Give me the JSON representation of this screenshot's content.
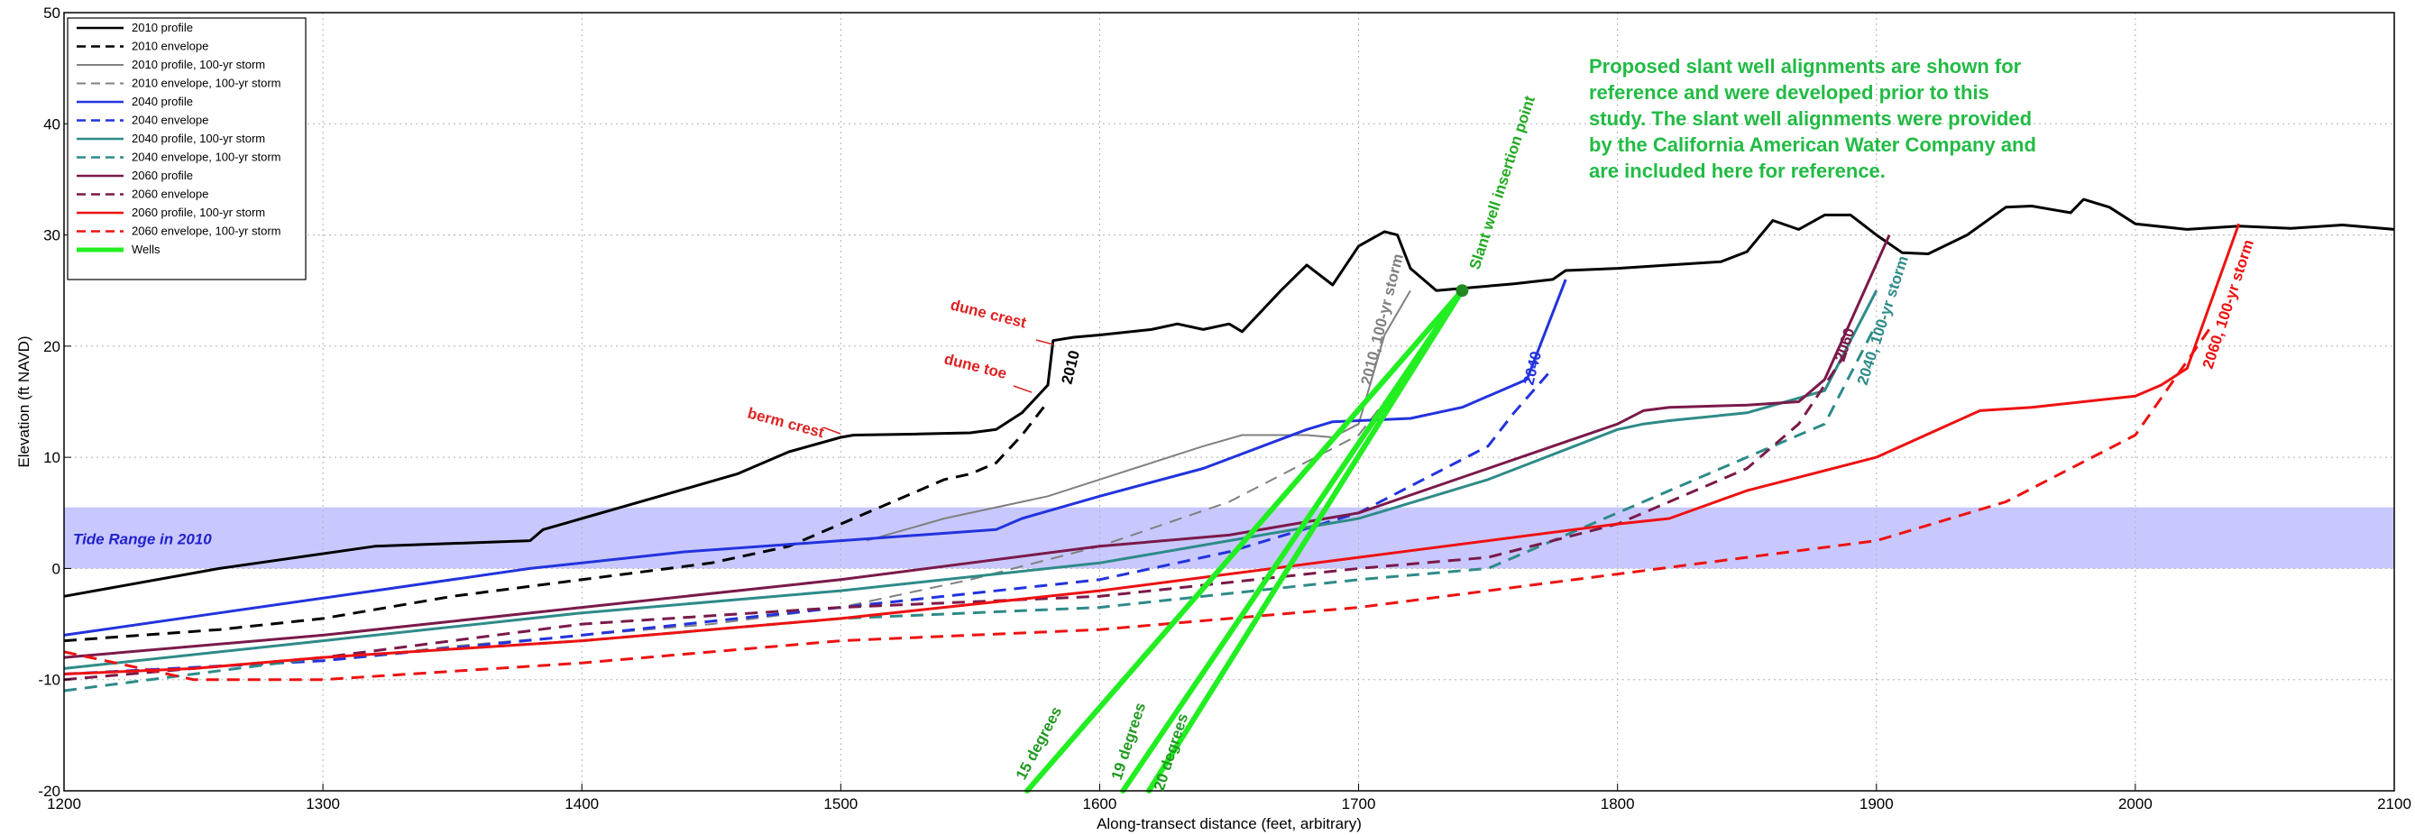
{
  "chart_data": {
    "type": "line",
    "xlabel": "Along-transect distance (feet, arbitrary)",
    "ylabel": "Elevation (ft NAVD)",
    "xlim": [
      1200,
      2100
    ],
    "ylim": [
      -20,
      50
    ],
    "xticks": [
      1200,
      1300,
      1400,
      1500,
      1600,
      1700,
      1800,
      1900,
      2000,
      2100
    ],
    "yticks": [
      -20,
      -10,
      0,
      10,
      20,
      30,
      40,
      50
    ],
    "grid": true,
    "legend_position": "top-left",
    "tide_band": {
      "label": "Tide Range in 2010",
      "y_min": 0,
      "y_max": 5.5,
      "color": "#c8c8ff",
      "label_color": "#2222cc"
    },
    "series": [
      {
        "name": "2010 profile",
        "color": "#000000",
        "dash": "solid",
        "width": 3,
        "x": [
          1200,
          1260,
          1320,
          1380,
          1385,
          1400,
          1430,
          1460,
          1480,
          1500,
          1505,
          1530,
          1550,
          1560,
          1570,
          1580,
          1582,
          1590,
          1600,
          1620,
          1630,
          1640,
          1650,
          1655,
          1670,
          1680,
          1690,
          1700,
          1710,
          1715,
          1720,
          1730,
          1740,
          1760,
          1775,
          1780,
          1800,
          1820,
          1840,
          1850,
          1860,
          1870,
          1880,
          1890,
          1900,
          1910,
          1920,
          1935,
          1950,
          1960,
          1975,
          1980,
          1990,
          2000,
          2020,
          2040,
          2060,
          2080,
          2100
        ],
        "y": [
          -2.5,
          0,
          2,
          2.5,
          3.5,
          4.5,
          6.5,
          8.5,
          10.5,
          11.8,
          12,
          12.1,
          12.2,
          12.5,
          14,
          16.5,
          20.5,
          20.8,
          21,
          21.5,
          22,
          21.5,
          22,
          21.3,
          25,
          27.3,
          25.5,
          29,
          30.3,
          30,
          27,
          25,
          25.2,
          25.6,
          26,
          26.8,
          27,
          27.3,
          27.6,
          28.5,
          31.3,
          30.5,
          31.8,
          31.8,
          30,
          28.4,
          28.3,
          30,
          32.5,
          32.6,
          32,
          33.2,
          32.5,
          31,
          30.5,
          30.8,
          30.6,
          30.9,
          30.5
        ]
      },
      {
        "name": "2010 envelope",
        "color": "#000000",
        "dash": "dashed",
        "width": 3,
        "x": [
          1200,
          1260,
          1300,
          1350,
          1400,
          1450,
          1480,
          1500,
          1520,
          1540,
          1550,
          1560,
          1570,
          1580
        ],
        "y": [
          -6.5,
          -5.5,
          -4.5,
          -2.5,
          -1,
          0.5,
          2,
          4,
          6,
          8,
          8.5,
          9.5,
          12,
          15
        ]
      },
      {
        "name": "2010 profile, 100-yr storm",
        "color": "#808080",
        "dash": "solid",
        "width": 2,
        "x": [
          1510,
          1540,
          1580,
          1600,
          1620,
          1640,
          1655,
          1670,
          1680,
          1690,
          1700,
          1710,
          1720
        ],
        "y": [
          2.5,
          4.5,
          6.5,
          8,
          9.5,
          11,
          12,
          12,
          12,
          11.8,
          13,
          21,
          25
        ]
      },
      {
        "name": "2010 envelope, 100-yr storm",
        "color": "#808080",
        "dash": "dashed",
        "width": 2,
        "x": [
          1200,
          1300,
          1350,
          1400,
          1450,
          1500,
          1550,
          1600,
          1650,
          1700,
          1720
        ],
        "y": [
          -9.5,
          -8.3,
          -7,
          -6,
          -5,
          -3.5,
          -1,
          2,
          6,
          12,
          18
        ]
      },
      {
        "name": "2040 profile",
        "color": "#2233dd",
        "dash": "solid",
        "width": 3,
        "x": [
          1200,
          1260,
          1320,
          1380,
          1440,
          1500,
          1560,
          1570,
          1600,
          1640,
          1680,
          1690,
          1700,
          1720,
          1740,
          1760,
          1765,
          1780
        ],
        "y": [
          -6,
          -4,
          -2,
          0,
          1.5,
          2.5,
          3.5,
          4.5,
          6.5,
          9,
          12.5,
          13.2,
          13.3,
          13.5,
          14.5,
          16.5,
          17,
          26
        ]
      },
      {
        "name": "2040 envelope",
        "color": "#2233dd",
        "dash": "dashed",
        "width": 3,
        "x": [
          1200,
          1300,
          1400,
          1500,
          1600,
          1650,
          1700,
          1750,
          1760,
          1775
        ],
        "y": [
          -9.5,
          -8.3,
          -6,
          -3.5,
          -1,
          1.5,
          5,
          11,
          14,
          18
        ]
      },
      {
        "name": "2040 profile, 100-yr storm",
        "color": "#2e8b88",
        "dash": "solid",
        "width": 3,
        "x": [
          1200,
          1300,
          1400,
          1500,
          1600,
          1650,
          1700,
          1750,
          1800,
          1810,
          1820,
          1850,
          1880,
          1900
        ],
        "y": [
          -9,
          -6.5,
          -4,
          -2,
          0.5,
          2.5,
          4.5,
          8,
          12.5,
          13,
          13.3,
          14,
          16,
          25
        ]
      },
      {
        "name": "2040 envelope, 100-yr storm",
        "color": "#2e8b88",
        "dash": "dashed",
        "width": 3,
        "x": [
          1200,
          1300,
          1400,
          1500,
          1600,
          1700,
          1750,
          1800,
          1850,
          1880,
          1900
        ],
        "y": [
          -11,
          -8,
          -6.5,
          -4.5,
          -3.5,
          -1,
          0,
          5,
          10,
          13,
          22
        ]
      },
      {
        "name": "2060 profile",
        "color": "#7a1a4a",
        "dash": "solid",
        "width": 3,
        "x": [
          1200,
          1300,
          1400,
          1500,
          1600,
          1650,
          1700,
          1750,
          1800,
          1810,
          1820,
          1850,
          1870,
          1880,
          1905
        ],
        "y": [
          -8,
          -6,
          -3.5,
          -1,
          2,
          3,
          5,
          9,
          13,
          14.2,
          14.5,
          14.7,
          15,
          17,
          30
        ]
      },
      {
        "name": "2060 envelope",
        "color": "#7a1a4a",
        "dash": "dashed",
        "width": 3,
        "x": [
          1200,
          1300,
          1400,
          1500,
          1600,
          1700,
          1750,
          1800,
          1850,
          1870,
          1890
        ],
        "y": [
          -10,
          -8,
          -5,
          -3.5,
          -2.5,
          0,
          1,
          4,
          9,
          13,
          20
        ]
      },
      {
        "name": "2060 profile, 100-yr storm",
        "color": "#ee1111",
        "dash": "solid",
        "width": 3,
        "x": [
          1200,
          1250,
          1300,
          1400,
          1500,
          1600,
          1700,
          1800,
          1820,
          1850,
          1900,
          1940,
          1960,
          2000,
          2010,
          2020,
          2040
        ],
        "y": [
          -9.5,
          -9,
          -8,
          -6.5,
          -4.5,
          -2,
          1,
          4,
          4.5,
          7,
          10,
          14.2,
          14.5,
          15.5,
          16.5,
          18,
          31
        ]
      },
      {
        "name": "2060 envelope, 100-yr storm",
        "color": "#ee1111",
        "dash": "dashed",
        "width": 3,
        "x": [
          1200,
          1250,
          1300,
          1400,
          1500,
          1600,
          1700,
          1750,
          1800,
          1850,
          1900,
          1950,
          2000,
          2030
        ],
        "y": [
          -7.5,
          -10,
          -10,
          -8.5,
          -6.5,
          -5.5,
          -3.5,
          -2,
          -0.5,
          1,
          2.5,
          6,
          12,
          22
        ]
      },
      {
        "name": "Wells",
        "color": "#22ee22",
        "dash": "solid",
        "width": 6,
        "origin": [
          1740,
          25
        ],
        "ends": [
          [
            1572,
            -20
          ],
          [
            1609,
            -20
          ],
          [
            1619,
            -20
          ]
        ]
      }
    ],
    "well_labels": [
      "15 degrees",
      "19 degrees",
      "20 degrees"
    ],
    "annotations": [
      {
        "text": "berm crest",
        "color": "#dd2222"
      },
      {
        "text": "dune toe",
        "color": "#dd2222"
      },
      {
        "text": "dune crest",
        "color": "#dd2222"
      },
      {
        "text": "2010",
        "color": "#000000"
      },
      {
        "text": "2010, 100-yr storm",
        "color": "#808080"
      },
      {
        "text": "2040",
        "color": "#2233dd"
      },
      {
        "text": "2060",
        "color": "#7a1a4a"
      },
      {
        "text": "2040, 100-yr storm",
        "color": "#2e8b88"
      },
      {
        "text": "2060, 100-yr storm",
        "color": "#ee1111"
      },
      {
        "text": "Slant well insertion point",
        "color": "#22aa22"
      }
    ],
    "note": {
      "lines": [
        "Proposed slant well alignments are shown for",
        "reference and were developed prior to this",
        "study. The slant well alignments were provided",
        "by the California American Water Company and",
        "are included here for reference."
      ],
      "color": "#22bb44"
    }
  }
}
